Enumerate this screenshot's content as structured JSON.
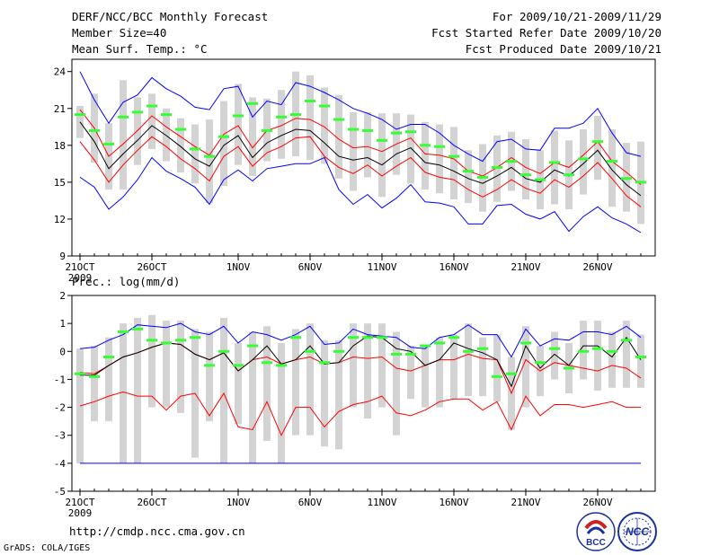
{
  "header": {
    "title": "DERF/NCC/BCC Monthly Forecast",
    "member_size": "Member Size=40",
    "variable": "Mean Surf. Temp.: °C",
    "period": "For 2009/10/21-2009/11/29",
    "fcst_started": "Fcst Started Refer Date 2009/10/20",
    "fcst_produced": "Fcst Produced Date 2009/10/21"
  },
  "footer": {
    "url": "http://cmdp.ncc.cma.gov.cn",
    "credit": "GrADS: COLA/IGES",
    "logo_bcc": "BCC",
    "logo_ncc": "NCC"
  },
  "colors": {
    "max_line": "#0000ff",
    "spread_line": "#ff0000",
    "mean_line": "#000000",
    "bar": "#d3d3d3",
    "climo": "#33ff33"
  },
  "chart_data": [
    {
      "type": "line",
      "title": "Mean Surf. Temp.: °C",
      "x_ticks": [
        "21OCT",
        "26OCT",
        "1NOV",
        "6NOV",
        "11NOV",
        "16NOV",
        "21NOV",
        "26NOV"
      ],
      "x_tick_days": [
        0,
        5,
        11,
        16,
        21,
        26,
        31,
        36
      ],
      "x_first_year": "2009",
      "days": 40,
      "ylim": [
        9,
        25
      ],
      "y_ticks": [
        9,
        12,
        15,
        18,
        21,
        24
      ],
      "series": [
        {
          "name": "max",
          "color": "#0000ff",
          "values": [
            24,
            21.7,
            19.8,
            21.5,
            22.1,
            23.5,
            22.6,
            22,
            21.1,
            20.9,
            22.6,
            22.8,
            20.3,
            21.6,
            21.3,
            23.1,
            22.8,
            22.3,
            21.7,
            21,
            20.6,
            20.1,
            19.3,
            19.7,
            19.7,
            19,
            18,
            17.3,
            16.7,
            18.3,
            18.5,
            17.7,
            17.6,
            19.4,
            19.4,
            19.8,
            21,
            19,
            17.4,
            17.1
          ]
        },
        {
          "name": "upper",
          "color": "#ff0000",
          "values": [
            20.9,
            19.4,
            17.1,
            18.1,
            19.2,
            20.4,
            19.5,
            18.7,
            17.9,
            17.2,
            18.9,
            19.6,
            17.8,
            19.2,
            19.6,
            20.2,
            20.1,
            19.5,
            18.5,
            17.8,
            17.9,
            17.5,
            18.1,
            18.6,
            17.3,
            17.2,
            16.9,
            15.9,
            15.5,
            16.2,
            17.0,
            16.2,
            15.7,
            16.6,
            16.2,
            17.2,
            18.3,
            16.7,
            15.8,
            14.8
          ]
        },
        {
          "name": "mean",
          "color": "#000000",
          "values": [
            19.9,
            18.3,
            16.1,
            17.3,
            18.4,
            19.6,
            18.8,
            17.9,
            16.9,
            16.3,
            18.0,
            18.8,
            17.0,
            18.2,
            18.8,
            19.3,
            19.2,
            18.2,
            17.1,
            16.8,
            17.0,
            16.4,
            17.3,
            17.8,
            16.6,
            16.4,
            15.9,
            15.3,
            14.9,
            15.5,
            16.2,
            15.3,
            15.0,
            16.0,
            15.5,
            16.5,
            17.6,
            16.0,
            14.8,
            13.9
          ]
        },
        {
          "name": "lower",
          "color": "#ff0000",
          "values": [
            18.3,
            16.8,
            15.0,
            16.4,
            17.6,
            18.7,
            17.9,
            16.9,
            16.1,
            15.1,
            17.1,
            17.9,
            16.3,
            17.4,
            17.9,
            18.6,
            18.7,
            17.1,
            16.2,
            15.7,
            16.4,
            15.5,
            16.3,
            17.0,
            15.8,
            15.4,
            15.2,
            14.4,
            13.8,
            14.4,
            15.2,
            14.5,
            14.1,
            15.2,
            14.6,
            15.5,
            16.6,
            15.3,
            13.9,
            13.0
          ]
        },
        {
          "name": "min",
          "color": "#0000ff",
          "values": [
            15.4,
            14.6,
            12.8,
            13.8,
            15.2,
            17.0,
            15.9,
            15.3,
            14.6,
            13.2,
            15.2,
            16.0,
            15.1,
            16.1,
            16.3,
            16.5,
            16.5,
            17.0,
            14.4,
            13.2,
            14.0,
            12.9,
            13.7,
            14.8,
            13.4,
            13.3,
            13.0,
            11.6,
            11.6,
            13.1,
            13.2,
            12.4,
            12.0,
            12.6,
            11.0,
            12.2,
            13.0,
            12.1,
            11.6,
            10.9
          ]
        }
      ],
      "bars": {
        "low": [
          18.6,
          16.6,
          14.4,
          14.4,
          16.4,
          17.7,
          16.7,
          15.8,
          14.9,
          13.3,
          14.7,
          16.4,
          15.5,
          16.7,
          16.9,
          17.1,
          16.8,
          16.5,
          15.3,
          14.3,
          15.4,
          13.8,
          15.6,
          14.9,
          14.4,
          14.1,
          13.6,
          13.3,
          12.6,
          13.4,
          14.3,
          13.6,
          12.8,
          13.2,
          12.8,
          14.0,
          15.2,
          13.0,
          12.6,
          11.6
        ],
        "high": [
          21.2,
          22.2,
          19.8,
          23.3,
          21.9,
          22.2,
          21.0,
          20.2,
          19.7,
          20.1,
          21.6,
          23.0,
          21.9,
          21.8,
          22.5,
          24.0,
          23.7,
          22.7,
          22.1,
          20.7,
          20.7,
          20.6,
          20.6,
          20.5,
          19.9,
          19.7,
          19.5,
          17.6,
          18.1,
          18.8,
          19.1,
          18.5,
          17.6,
          19.2,
          18.4,
          19.3,
          20.4,
          19.3,
          18.2,
          18.3
        ]
      },
      "climo": [
        20.5,
        19.2,
        18.1,
        20.3,
        20.7,
        21.2,
        20.5,
        19.3,
        17.7,
        17.1,
        18.7,
        20.4,
        21.4,
        19.2,
        20.3,
        20.5,
        21.6,
        21.2,
        20.1,
        19.3,
        19.2,
        18.4,
        19.0,
        19.1,
        18.0,
        17.9,
        17.1,
        15.9,
        15.4,
        16.2,
        16.7,
        15.6,
        15.2,
        16.6,
        15.6,
        16.9,
        18.3,
        16.7,
        15.3,
        15.0
      ]
    },
    {
      "type": "line",
      "title": "Prec.: log(mm/d)",
      "x_ticks": [
        "21OCT",
        "26OCT",
        "1NOV",
        "6NOV",
        "11NOV",
        "16NOV",
        "21NOV",
        "26NOV"
      ],
      "x_tick_days": [
        0,
        5,
        11,
        16,
        21,
        26,
        31,
        36
      ],
      "x_first_year": "2009",
      "days": 40,
      "ylim": [
        -5,
        2
      ],
      "y_ticks": [
        -5,
        -4,
        -3,
        -2,
        -1,
        0,
        1,
        2
      ],
      "series": [
        {
          "name": "max",
          "color": "#0000ff",
          "values": [
            0.1,
            0.15,
            0.4,
            0.6,
            0.95,
            0.9,
            0.85,
            1.0,
            0.7,
            0.6,
            0.9,
            0.3,
            0.7,
            0.6,
            0.4,
            0.6,
            0.9,
            0.25,
            0.3,
            0.8,
            0.6,
            0.55,
            0.5,
            0.15,
            0.1,
            0.5,
            0.6,
            0.95,
            0.6,
            0.6,
            -0.2,
            0.8,
            0.2,
            0.45,
            0.4,
            0.7,
            0.7,
            0.6,
            0.9,
            0.5
          ]
        },
        {
          "name": "upper",
          "color": "#ff0000",
          "values": [
            -0.75,
            -0.8,
            -0.5,
            -0.2,
            -0.05,
            0.15,
            0.3,
            0.25,
            -0.1,
            -0.3,
            -0.05,
            -0.7,
            -0.3,
            -0.2,
            -0.45,
            -0.3,
            -0.2,
            -0.45,
            -0.4,
            -0.2,
            -0.25,
            -0.2,
            -0.6,
            -0.7,
            -0.5,
            -0.3,
            -0.3,
            -0.1,
            -0.25,
            -0.3,
            -1.5,
            -0.3,
            -0.7,
            -0.4,
            -0.5,
            -0.6,
            -0.7,
            -0.5,
            -0.6,
            -0.95
          ]
        },
        {
          "name": "mean",
          "color": "#000000",
          "values": [
            -0.85,
            -0.85,
            -0.5,
            -0.2,
            -0.05,
            0.15,
            0.3,
            0.25,
            -0.1,
            -0.3,
            -0.05,
            -0.7,
            -0.3,
            0.2,
            -0.45,
            -0.3,
            0.2,
            -0.45,
            -0.4,
            0.2,
            0.55,
            0.5,
            0.1,
            0.0,
            -0.5,
            -0.3,
            0.3,
            0.1,
            -0.05,
            -0.3,
            -1.25,
            0.2,
            -0.6,
            -0.1,
            -0.5,
            0.2,
            0.2,
            -0.2,
            0.5,
            -0.3
          ]
        },
        {
          "name": "lower",
          "color": "#ff0000",
          "values": [
            -1.95,
            -1.8,
            -1.6,
            -1.45,
            -1.6,
            -1.6,
            -2.1,
            -1.6,
            -1.5,
            -2.3,
            -1.5,
            -2.7,
            -2.8,
            -1.8,
            -3.0,
            -2.0,
            -2.0,
            -2.7,
            -2.15,
            -1.9,
            -1.8,
            -1.6,
            -2.2,
            -2.3,
            -2.1,
            -1.8,
            -1.7,
            -1.7,
            -2.1,
            -1.8,
            -2.8,
            -1.6,
            -2.3,
            -1.9,
            -1.9,
            -2.0,
            -1.9,
            -1.8,
            -2.0,
            -2.0
          ]
        },
        {
          "name": "min",
          "color": "#0000ff",
          "values": [
            -4,
            -4,
            -4,
            -4,
            -4,
            -4,
            -4,
            -4,
            -4,
            -4,
            -4,
            -4,
            -4,
            -4,
            -4,
            -4,
            -4,
            -4,
            -4,
            -4,
            -4,
            -4,
            -4,
            -4,
            -4,
            -4,
            -4,
            -4,
            -4,
            -4,
            -4,
            -4,
            -4,
            -4,
            -4,
            -4,
            -4,
            -4,
            -4,
            -4
          ]
        }
      ],
      "bars": {
        "low": [
          -4.0,
          -2.5,
          -2.5,
          -4.0,
          -4.0,
          -2.0,
          -2.0,
          -2.2,
          -3.8,
          -2.5,
          -4.0,
          -2.6,
          -4.0,
          -3.2,
          -4.0,
          -3.0,
          -3.0,
          -3.4,
          -3.5,
          -2.0,
          -2.4,
          -2.0,
          -3.0,
          -1.7,
          -2.0,
          -2.0,
          -1.7,
          -1.6,
          -1.6,
          -1.8,
          -2.8,
          -2.0,
          -1.6,
          -1.0,
          -1.5,
          -1.0,
          -1.4,
          -1.3,
          -1.3,
          -1.3
        ],
        "high": [
          0.1,
          0.2,
          0.5,
          1.0,
          1.2,
          1.3,
          1.1,
          1.1,
          0.8,
          0.7,
          1.2,
          0.3,
          0.7,
          0.9,
          0.3,
          0.8,
          1.0,
          0.4,
          0.4,
          1.0,
          1.0,
          1.0,
          0.7,
          0.2,
          0.2,
          0.5,
          0.6,
          1.0,
          0.5,
          0.6,
          -0.2,
          0.9,
          0.2,
          0.7,
          0.3,
          1.1,
          1.1,
          0.7,
          1.1,
          0.6
        ]
      },
      "climo": [
        -0.8,
        -0.9,
        -0.2,
        0.7,
        0.8,
        0.4,
        0.3,
        0.4,
        0.5,
        -0.5,
        0.0,
        -0.5,
        0.2,
        -0.4,
        -0.5,
        0.5,
        0.0,
        -0.4,
        0.0,
        0.5,
        0.5,
        0.5,
        -0.1,
        -0.1,
        0.2,
        0.3,
        0.5,
        0.0,
        0.1,
        -0.9,
        -0.8,
        0.3,
        -0.4,
        0.1,
        -0.6,
        0.0,
        0.1,
        0.0,
        0.4,
        -0.2
      ]
    }
  ]
}
